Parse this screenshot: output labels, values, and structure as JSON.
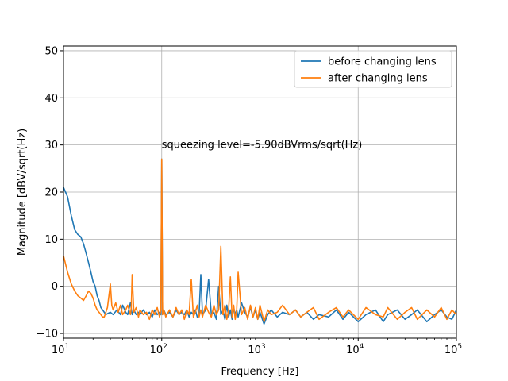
{
  "chart_data": {
    "type": "line",
    "xscale": "log",
    "xlim": [
      10,
      100000
    ],
    "ylim": [
      -11,
      51
    ],
    "grid": true,
    "xlabel": "Frequency [Hz]",
    "ylabel": "Magnitude [dBV/sqrt(Hz)",
    "xticks": [
      {
        "value": 10,
        "base": "10",
        "exp": "1"
      },
      {
        "value": 100,
        "base": "10",
        "exp": "2"
      },
      {
        "value": 1000,
        "base": "10",
        "exp": "3"
      },
      {
        "value": 10000,
        "base": "10",
        "exp": "4"
      },
      {
        "value": 100000,
        "base": "10",
        "exp": "5"
      }
    ],
    "yticks": [
      -10,
      0,
      10,
      20,
      30,
      40,
      50
    ],
    "ytick_labels": [
      "−10",
      "0",
      "10",
      "20",
      "30",
      "40",
      "50"
    ],
    "annotation": {
      "text": "squeezing level=-5.90dBVrms/sqrt(Hz)",
      "x": 100,
      "y": 30
    },
    "legend": {
      "position": "top-right"
    },
    "series": [
      {
        "name": "before changing lens",
        "color": "#1f77b4",
        "x": [
          10,
          11,
          12,
          13,
          14,
          15,
          16,
          17,
          18,
          19,
          20,
          21,
          22,
          23,
          24,
          25,
          26,
          27,
          28,
          30,
          32,
          35,
          38,
          40,
          43,
          45,
          48,
          50,
          52,
          55,
          58,
          60,
          65,
          70,
          75,
          80,
          85,
          90,
          95,
          98,
          100,
          102,
          105,
          110,
          120,
          130,
          140,
          150,
          160,
          170,
          180,
          190,
          200,
          210,
          220,
          230,
          240,
          250,
          260,
          280,
          300,
          320,
          340,
          360,
          380,
          400,
          420,
          440,
          460,
          480,
          500,
          520,
          540,
          560,
          580,
          600,
          650,
          700,
          750,
          800,
          850,
          900,
          950,
          1000,
          1100,
          1200,
          1300,
          1500,
          1700,
          2000,
          2300,
          2600,
          3000,
          3500,
          4000,
          5000,
          6000,
          7000,
          8000,
          10000,
          12000,
          15000,
          18000,
          20000,
          25000,
          30000,
          35000,
          40000,
          50000,
          60000,
          70000,
          80000,
          90000,
          100000
        ],
        "y": [
          21,
          19,
          15,
          12,
          11,
          10.5,
          9,
          7,
          5,
          3,
          1,
          0,
          -2,
          -3,
          -4.5,
          -5,
          -5.5,
          -6,
          -5.8,
          -5.5,
          -6,
          -5,
          -6,
          -4,
          -5.5,
          -6,
          -3.5,
          -6,
          -5,
          -6,
          -5.5,
          -6,
          -5,
          -6,
          -5.5,
          -6.5,
          -5,
          -6,
          -5.5,
          -6,
          27,
          -6,
          -5,
          -6,
          -5.5,
          -6.5,
          -5,
          -6,
          -5.5,
          -6,
          -5,
          -6.5,
          -5.5,
          -6,
          -5,
          -6.5,
          -6,
          2.5,
          -6,
          -5,
          1.5,
          -6,
          -5.5,
          -7,
          0,
          -6,
          -5,
          -7,
          -4,
          -6.5,
          -5,
          -7,
          -4.5,
          -6,
          -5,
          -6.5,
          -3.5,
          -5.5,
          -6.5,
          -4.5,
          -6.5,
          -5,
          -7,
          -5.5,
          -8,
          -6,
          -5,
          -6.5,
          -5.5,
          -6,
          -5,
          -6.5,
          -5.5,
          -7,
          -6,
          -6.5,
          -5,
          -7,
          -5.5,
          -7.5,
          -6,
          -5,
          -7.5,
          -6,
          -5,
          -7,
          -6,
          -5,
          -7.5,
          -6,
          -5,
          -6.5,
          -7,
          -5
        ],
        "values_visible": true
      },
      {
        "name": "after changing lens",
        "color": "#ff7f0e",
        "x": [
          10,
          11,
          12,
          13,
          14,
          15,
          16,
          17,
          18,
          19,
          20,
          21,
          22,
          23,
          24,
          25,
          26,
          27,
          28,
          29,
          30,
          31,
          32,
          34,
          36,
          38,
          40,
          43,
          45,
          48,
          49,
          50,
          52,
          55,
          58,
          60,
          65,
          70,
          75,
          80,
          85,
          90,
          95,
          98,
          100,
          102,
          105,
          110,
          120,
          130,
          140,
          150,
          160,
          170,
          180,
          190,
          200,
          210,
          220,
          230,
          240,
          250,
          260,
          280,
          300,
          320,
          340,
          360,
          380,
          400,
          420,
          440,
          460,
          480,
          500,
          520,
          540,
          560,
          580,
          600,
          650,
          700,
          750,
          800,
          850,
          900,
          950,
          1000,
          1100,
          1200,
          1300,
          1500,
          1700,
          2000,
          2300,
          2600,
          3000,
          3500,
          4000,
          5000,
          6000,
          7000,
          8000,
          10000,
          12000,
          15000,
          18000,
          20000,
          25000,
          30000,
          35000,
          40000,
          50000,
          60000,
          70000,
          80000,
          90000,
          100000
        ],
        "y": [
          6.5,
          3,
          0.5,
          -1,
          -2,
          -2.5,
          -3,
          -2,
          -1,
          -1.5,
          -2.5,
          -4,
          -5,
          -5.5,
          -6,
          -6.5,
          -6.5,
          -5.5,
          -4.5,
          -2,
          0.5,
          -4,
          -5,
          -3.5,
          -5.5,
          -4,
          -6,
          -5,
          -4,
          -6,
          -4.5,
          2.5,
          -5.5,
          -4.5,
          -6.5,
          -5,
          -6,
          -5.5,
          -7,
          -5,
          -6,
          -4.5,
          -6.5,
          -5,
          27,
          -6,
          -5,
          -6.5,
          -5,
          -6.5,
          -4.5,
          -6,
          -5,
          -7,
          -5,
          -6,
          1.5,
          -6.5,
          -5.5,
          -4,
          -6.5,
          -5,
          -6.5,
          -4,
          -5.5,
          -6.5,
          -4,
          -6,
          -5,
          8.5,
          -6,
          -4,
          -7,
          -5,
          2,
          -6.5,
          -4,
          -7,
          -5,
          3,
          -6,
          -4.5,
          -7,
          -4,
          -6.5,
          -4.5,
          -7,
          -4,
          -7.5,
          -5,
          -6,
          -5.5,
          -4,
          -6,
          -5,
          -6.5,
          -5.5,
          -4.5,
          -7,
          -5.5,
          -4.5,
          -6.5,
          -5,
          -7,
          -4.5,
          -6,
          -6.5,
          -4.5,
          -7,
          -5.5,
          -4.5,
          -7,
          -5,
          -6.5,
          -4.5,
          -7,
          -5,
          -6
        ]
      }
    ]
  }
}
